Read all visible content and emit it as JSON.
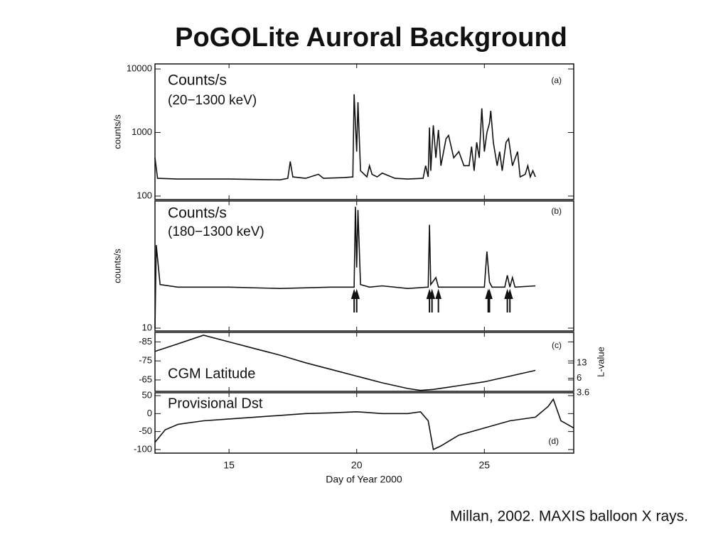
{
  "title": "PoGOLite Auroral Background",
  "citation": "Millan, 2002. MAXIS balloon X rays.",
  "chart_data": [
    {
      "type": "line",
      "log": true,
      "ylabel": "counts/s",
      "annotations": [
        "Counts/s",
        "(20−1300 keV)",
        "(a)"
      ],
      "xlim": [
        12.1,
        28.5
      ],
      "ylim": [
        88,
        12000
      ],
      "yticks": [
        100,
        1000,
        10000
      ],
      "color": "#111",
      "x": [
        12.1,
        12.2,
        13,
        15,
        17,
        17.3,
        17.4,
        17.5,
        18,
        18.5,
        18.7,
        19.5,
        19.85,
        19.9,
        20.0,
        20.05,
        20.15,
        20.4,
        20.5,
        20.6,
        20.8,
        21,
        21.5,
        22,
        22.6,
        22.7,
        22.8,
        22.85,
        22.9,
        23.0,
        23.1,
        23.2,
        23.3,
        23.5,
        23.6,
        23.8,
        24,
        24.2,
        24.4,
        24.5,
        24.6,
        24.7,
        24.8,
        24.9,
        25.0,
        25.1,
        25.2,
        25.25,
        25.35,
        25.5,
        25.6,
        25.7,
        25.85,
        25.95,
        26.1,
        26.3,
        26.4,
        26.6,
        26.7,
        26.8,
        26.9,
        27.0
      ],
      "values": [
        400,
        190,
        185,
        185,
        180,
        190,
        350,
        200,
        190,
        220,
        190,
        195,
        200,
        4000,
        500,
        3000,
        250,
        200,
        300,
        220,
        200,
        230,
        190,
        185,
        190,
        300,
        200,
        1200,
        250,
        1300,
        400,
        1100,
        300,
        800,
        900,
        400,
        500,
        300,
        300,
        600,
        250,
        700,
        400,
        2400,
        500,
        1000,
        1400,
        2200,
        700,
        300,
        500,
        250,
        700,
        800,
        300,
        500,
        200,
        220,
        300,
        200,
        250,
        200
      ]
    },
    {
      "type": "line",
      "log": true,
      "ylabel": "counts/s",
      "annotations": [
        "Counts/s",
        "(180−1300 keV)",
        "(b)"
      ],
      "xlim": [
        12.1,
        28.5
      ],
      "ylim": [
        9.5,
        100
      ],
      "yticks": [
        10
      ],
      "color": "#111",
      "x": [
        12.1,
        12.15,
        12.3,
        13,
        15,
        17,
        19,
        19.9,
        19.95,
        20.0,
        20.05,
        20.15,
        20.5,
        21,
        22,
        22.8,
        22.85,
        22.9,
        23.1,
        23.2,
        24,
        25,
        25.1,
        25.2,
        25.3,
        25.8,
        25.9,
        26.0,
        26.1,
        26.2,
        27.0
      ],
      "values": [
        10,
        45,
        22,
        21,
        21,
        20.5,
        21,
        21,
        90,
        30,
        85,
        22,
        21,
        21.5,
        20.5,
        21,
        65,
        22,
        25,
        21,
        21,
        21,
        40,
        23,
        21,
        21,
        26,
        21,
        25,
        21,
        21.5
      ],
      "arrows": [
        19.9,
        20.0,
        22.85,
        22.95,
        23.2,
        25.15,
        25.2,
        25.9,
        26.0
      ]
    },
    {
      "type": "line",
      "annotations": [
        "CGM Latitude",
        "(c)"
      ],
      "xlim": [
        12.1,
        28.5
      ],
      "ylim": [
        -59,
        -90
      ],
      "yticks": [
        -85,
        -75,
        -65
      ],
      "color": "#111",
      "y2label": "L-value",
      "y2scale": "dipole",
      "y2ticks": [
        13,
        6,
        3.6
      ],
      "x": [
        12.1,
        13,
        14,
        15,
        16,
        17,
        18,
        19,
        20,
        21,
        22,
        22.5,
        23,
        24,
        25,
        26,
        27
      ],
      "values": [
        -80,
        -84,
        -88.5,
        -85,
        -81.5,
        -78,
        -74,
        -70.5,
        -67,
        -63.5,
        -60.5,
        -59.5,
        -60,
        -62,
        -64,
        -67,
        -70
      ]
    },
    {
      "type": "line",
      "annotations": [
        "Provisional Dst",
        "(d)"
      ],
      "xlabel": "Day of Year 2000",
      "xlim": [
        12.1,
        28.5
      ],
      "ylim": [
        -110,
        58
      ],
      "yticks": [
        50,
        0,
        -50,
        -100
      ],
      "xticks": [
        15,
        20,
        25
      ],
      "color": "#111",
      "x": [
        12.1,
        12.5,
        13,
        14,
        15,
        16,
        17,
        18,
        19,
        20,
        21,
        22,
        22.5,
        22.8,
        23,
        23.3,
        24,
        25,
        26,
        27,
        27.5,
        27.7,
        28,
        28.5
      ],
      "values": [
        -80,
        -45,
        -30,
        -20,
        -15,
        -10,
        -5,
        0,
        2,
        5,
        0,
        0,
        5,
        -20,
        -100,
        -90,
        -60,
        -40,
        -20,
        -10,
        20,
        40,
        -20,
        -40
      ]
    }
  ]
}
